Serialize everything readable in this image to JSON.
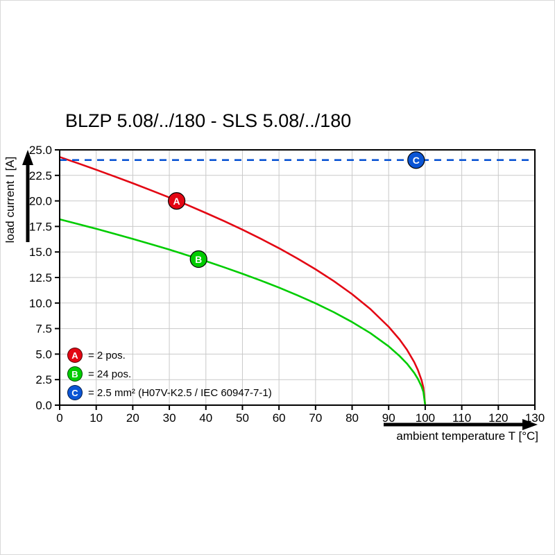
{
  "title": "BLZP 5.08/../180 - SLS 5.08/../180",
  "chart_data": {
    "type": "line",
    "title": "BLZP 5.08/../180 - SLS 5.08/../180",
    "xlabel": "ambient temperature T [°C]",
    "ylabel": "load current I [A]",
    "xlim": [
      0,
      130
    ],
    "ylim": [
      0,
      25
    ],
    "x_tick_values": [
      0,
      10,
      20,
      30,
      40,
      50,
      60,
      70,
      80,
      90,
      100,
      110,
      120,
      130
    ],
    "x_tick_labels": [
      "0",
      "10",
      "20",
      "30",
      "40",
      "50",
      "60",
      "70",
      "80",
      "90",
      "100",
      "110",
      "120",
      "130"
    ],
    "y_tick_values": [
      0,
      2.5,
      5,
      7.5,
      10,
      12.5,
      15,
      17.5,
      20,
      22.5,
      25
    ],
    "y_tick_labels": [
      "0.0",
      "2.5",
      "5.0",
      "7.5",
      "10.0",
      "12.5",
      "15.0",
      "17.5",
      "20.0",
      "22.5",
      "25.0"
    ],
    "grid": true,
    "legend_position": "bottom-left-inside",
    "colors": {
      "grid": "#c9c9c9",
      "frame": "#000000"
    },
    "series": [
      {
        "name": "A",
        "legend": "= 2 pos.",
        "color": "#e30613",
        "style": "solid",
        "marker": {
          "x": 32,
          "y": 20.0
        },
        "points": [
          [
            0,
            24.3
          ],
          [
            5,
            23.69
          ],
          [
            10,
            23.05
          ],
          [
            15,
            22.4
          ],
          [
            20,
            21.73
          ],
          [
            25,
            21.04
          ],
          [
            30,
            20.33
          ],
          [
            35,
            19.59
          ],
          [
            40,
            18.82
          ],
          [
            45,
            18.02
          ],
          [
            50,
            17.18
          ],
          [
            55,
            16.3
          ],
          [
            60,
            15.37
          ],
          [
            65,
            14.37
          ],
          [
            70,
            13.31
          ],
          [
            75,
            12.15
          ],
          [
            80,
            10.87
          ],
          [
            85,
            9.41
          ],
          [
            90,
            7.68
          ],
          [
            93,
            6.43
          ],
          [
            95,
            5.43
          ],
          [
            97,
            4.21
          ],
          [
            98,
            3.44
          ],
          [
            99,
            2.43
          ],
          [
            99.5,
            1.72
          ],
          [
            100,
            0
          ]
        ]
      },
      {
        "name": "B",
        "legend": "= 24 pos.",
        "color": "#00cc00",
        "style": "solid",
        "marker": {
          "x": 38,
          "y": 14.3
        },
        "points": [
          [
            0,
            18.2
          ],
          [
            5,
            17.74
          ],
          [
            10,
            17.27
          ],
          [
            15,
            16.78
          ],
          [
            20,
            16.28
          ],
          [
            25,
            15.76
          ],
          [
            30,
            15.23
          ],
          [
            35,
            14.67
          ],
          [
            40,
            14.1
          ],
          [
            45,
            13.5
          ],
          [
            50,
            12.87
          ],
          [
            55,
            12.21
          ],
          [
            60,
            11.51
          ],
          [
            65,
            10.76
          ],
          [
            70,
            9.97
          ],
          [
            75,
            9.1
          ],
          [
            80,
            8.14
          ],
          [
            85,
            7.05
          ],
          [
            90,
            5.76
          ],
          [
            93,
            4.81
          ],
          [
            95,
            4.07
          ],
          [
            97,
            3.15
          ],
          [
            98,
            2.57
          ],
          [
            99,
            1.82
          ],
          [
            99.5,
            1.29
          ],
          [
            100,
            0
          ]
        ]
      },
      {
        "name": "C",
        "legend": "= 2.5 mm² (H07V-K2.5 / IEC 60947-7-1)",
        "color": "#0b55d4",
        "style": "dashed",
        "marker": {
          "x": 97.5,
          "y": 24
        },
        "points": [
          [
            0,
            24
          ],
          [
            130,
            24
          ]
        ]
      }
    ]
  }
}
